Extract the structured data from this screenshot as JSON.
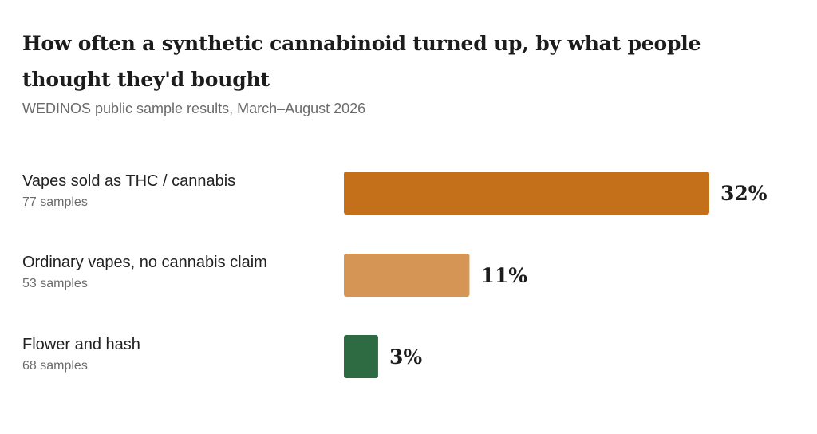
{
  "chart_data": {
    "type": "bar",
    "orientation": "horizontal",
    "title": "How often a synthetic cannabinoid turned up, by what people thought they'd bought",
    "subtitle": "WEDINOS public sample results, March–August 2026",
    "categories": [
      "Vapes sold as THC / cannabis",
      "Ordinary vapes, no cannabis claim",
      "Flower and hash"
    ],
    "sample_counts": [
      "77 samples",
      "53 samples",
      "68 samples"
    ],
    "values": [
      32,
      11,
      3
    ],
    "value_labels": [
      "32%",
      "11%",
      "3%"
    ],
    "colors": [
      "#c46f19",
      "#d49555",
      "#2e6b43"
    ],
    "unit": "%",
    "xlim": [
      0,
      32
    ],
    "grid": false,
    "legend": "none"
  }
}
